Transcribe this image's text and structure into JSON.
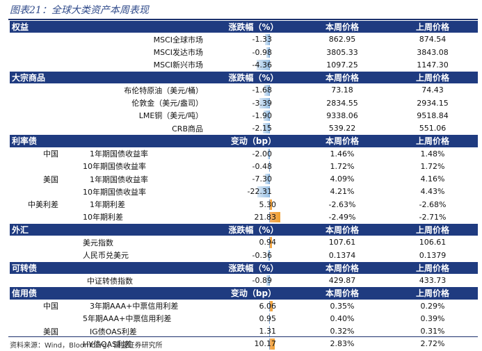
{
  "title": "图表21：全球大类资产本周表现",
  "source": "资料来源：Wind，Bloomberg，国盛证券研究所",
  "colors": {
    "header_bg": "#1f3b80",
    "neg_bar": "#9cc3e6",
    "pos_bar": "#f0a030"
  },
  "sections": [
    {
      "name": "权益",
      "headers": [
        "涨跌幅（%）",
        "本周价格",
        "上周价格"
      ],
      "label_style": "right",
      "scale": 4.5,
      "rows": [
        {
          "region": "",
          "label": "MSCI全球市场",
          "change": "-1.33",
          "value": -1.33,
          "cur": "862.95",
          "prev": "874.54"
        },
        {
          "region": "",
          "label": "MSCI发达市场",
          "change": "-0.98",
          "value": -0.98,
          "cur": "3805.33",
          "prev": "3843.08"
        },
        {
          "region": "",
          "label": "MSCI新兴市场",
          "change": "-4.36",
          "value": -4.36,
          "cur": "1097.25",
          "prev": "1147.30"
        }
      ]
    },
    {
      "name": "大宗商品",
      "headers": [
        "涨跌幅（%）",
        "本周价格",
        "上周价格"
      ],
      "label_style": "right",
      "scale": 4.5,
      "rows": [
        {
          "region": "",
          "label": "布伦特原油（美元/桶）",
          "change": "-1.68",
          "value": -1.68,
          "cur": "73.18",
          "prev": "74.43"
        },
        {
          "region": "",
          "label": "伦敦金（美元/盎司）",
          "change": "-3.39",
          "value": -3.39,
          "cur": "2834.55",
          "prev": "2934.15"
        },
        {
          "region": "",
          "label": "LME铜（美元/吨）",
          "change": "-1.90",
          "value": -1.9,
          "cur": "9338.06",
          "prev": "9518.84"
        },
        {
          "region": "",
          "label": "CRB商品",
          "change": "-2.15",
          "value": -2.15,
          "cur": "539.22",
          "prev": "551.06"
        }
      ]
    },
    {
      "name": "利率债",
      "headers": [
        "变动（bp）",
        "本周价格",
        "上周价格"
      ],
      "label_style": "region",
      "scale": 23,
      "rows": [
        {
          "region": "中国",
          "label": "1年期国债收益率",
          "change": "-2.00",
          "value": -2.0,
          "cur": "1.46%",
          "prev": "1.48%"
        },
        {
          "region": "",
          "label": "10年期国债收益率",
          "change": "-0.48",
          "value": -0.48,
          "cur": "1.72%",
          "prev": "1.72%"
        },
        {
          "region": "美国",
          "label": "1年期国债收益率",
          "change": "-7.30",
          "value": -7.3,
          "cur": "4.09%",
          "prev": "4.16%"
        },
        {
          "region": "",
          "label": "10年期国债收益率",
          "change": "-22.31",
          "value": -22.31,
          "cur": "4.21%",
          "prev": "4.43%"
        },
        {
          "region": "中美利差",
          "label": "1年期利差",
          "change": "5.30",
          "value": 5.3,
          "cur": "-2.63%",
          "prev": "-2.68%"
        },
        {
          "region": "",
          "label": "10年期利差",
          "change": "21.83",
          "value": 21.83,
          "cur": "-2.49%",
          "prev": "-2.71%"
        }
      ]
    },
    {
      "name": "外汇",
      "headers": [
        "涨跌幅（%）",
        "本周价格",
        "上周价格"
      ],
      "label_style": "region",
      "scale": 4.5,
      "rows": [
        {
          "region": "",
          "label": "美元指数",
          "change": "0.94",
          "value": 0.94,
          "cur": "107.61",
          "prev": "106.61"
        },
        {
          "region": "",
          "label": "人民币兑美元",
          "change": "-0.36",
          "value": -0.36,
          "cur": "0.1374",
          "prev": "0.1379"
        }
      ]
    },
    {
      "name": "可转债",
      "headers": [
        "涨跌幅（%）",
        "本周价格",
        "上周价格"
      ],
      "label_style": "mid",
      "scale": 4.5,
      "rows": [
        {
          "region": "",
          "label": "中证转债指数",
          "change": "-0.89",
          "value": -0.89,
          "cur": "429.87",
          "prev": "433.73"
        }
      ]
    },
    {
      "name": "信用债",
      "headers": [
        "变动（bp）",
        "本周价格",
        "上周价格"
      ],
      "label_style": "region",
      "scale": 23,
      "rows": [
        {
          "region": "中国",
          "label": "3年期AAA+中票信用利差",
          "change": "6.06",
          "value": 6.06,
          "cur": "0.35%",
          "prev": "0.29%"
        },
        {
          "region": "",
          "label": "5年期AAA+中票信用利差",
          "change": "0.95",
          "value": 0.95,
          "cur": "0.40%",
          "prev": "0.39%"
        },
        {
          "region": "美国",
          "label": "IG债OAS利差",
          "change": "1.31",
          "value": 1.31,
          "cur": "0.32%",
          "prev": "0.31%"
        },
        {
          "region": "",
          "label": "HY债OAS利差",
          "change": "10.17",
          "value": 10.17,
          "cur": "2.83%",
          "prev": "2.72%"
        }
      ]
    }
  ]
}
